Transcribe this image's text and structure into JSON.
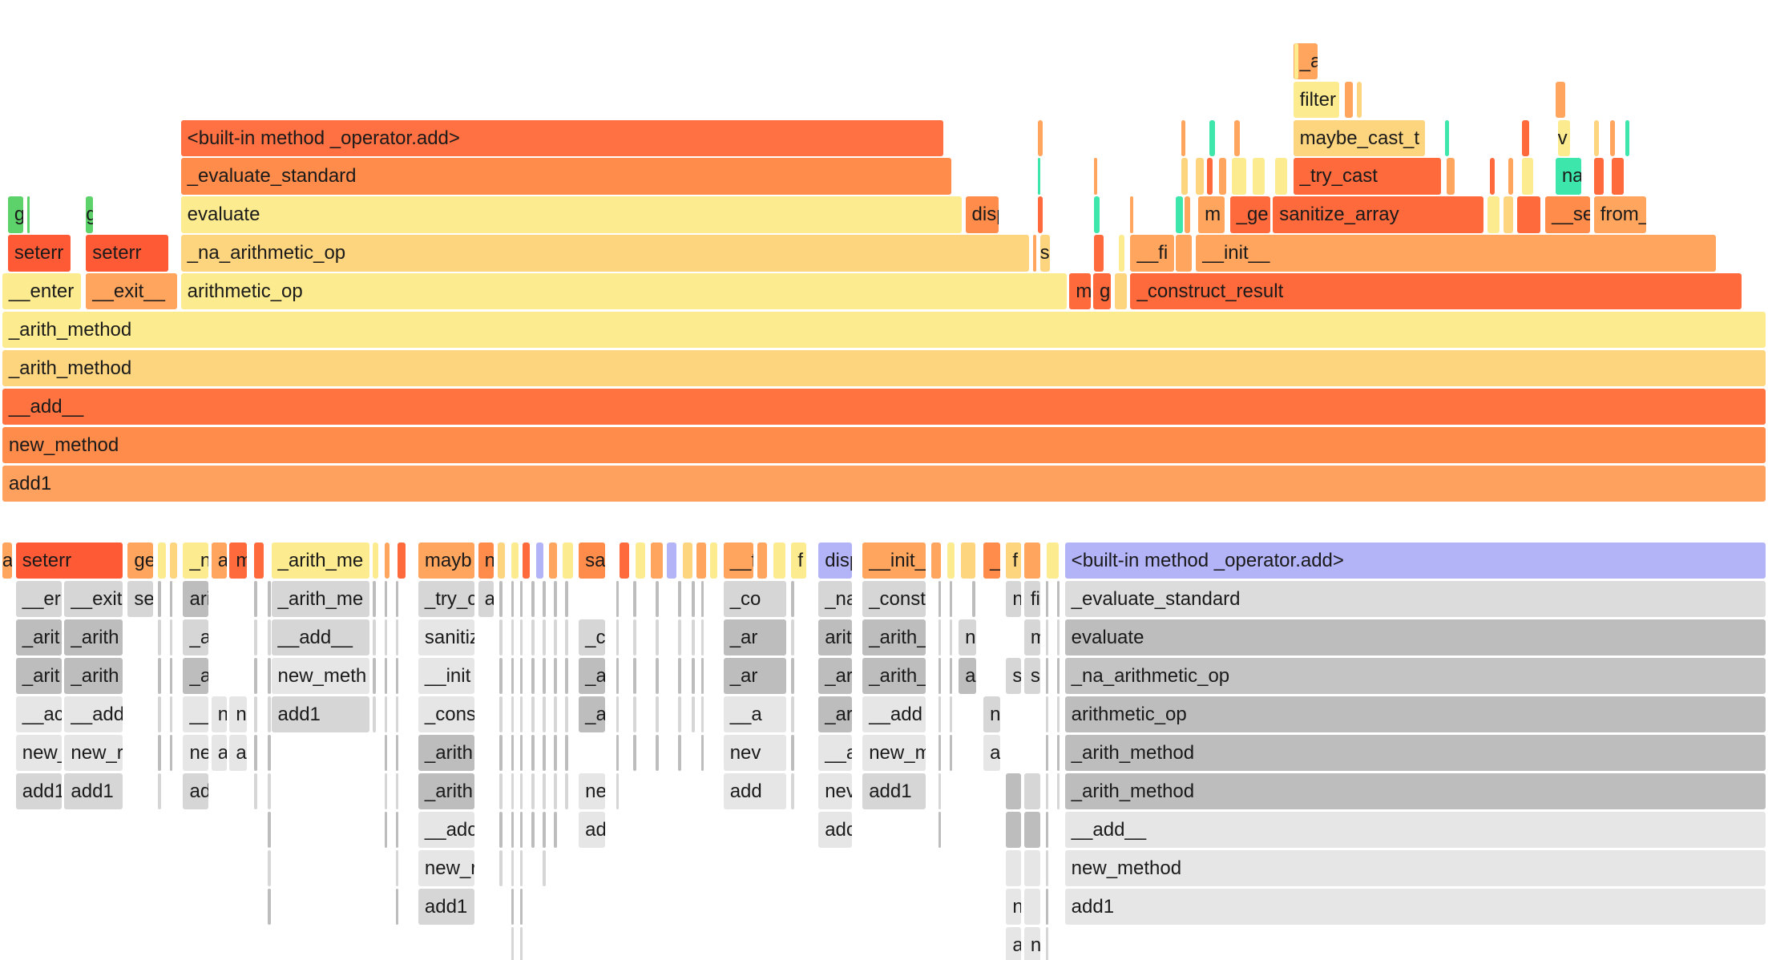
{
  "top": {
    "rows": [
      [
        "_a"
      ],
      [
        "filter"
      ],
      [
        "<built-in method _operator.add>",
        "maybe_cast_t",
        "v"
      ],
      [
        "_evaluate_standard",
        "_try_cast",
        "na"
      ],
      [
        "g",
        "g",
        "evaluate",
        "disp",
        "m",
        "_ge",
        "sanitize_array",
        "__se",
        "from_"
      ],
      [
        "seterr",
        "seterr",
        "_na_arithmetic_op",
        "s",
        "__fi",
        "__init__"
      ],
      [
        "__enter",
        "__exit__",
        "arithmetic_op",
        "m",
        "g",
        "_construct_result"
      ],
      [
        "_arith_method"
      ],
      [
        "_arith_method"
      ],
      [
        "__add__"
      ],
      [
        "new_method"
      ],
      [
        "add1"
      ]
    ]
  },
  "bottom": {
    "rows": [
      [
        "a",
        "seterr",
        "ge",
        "_n",
        "a",
        "m",
        "_arith_me",
        "mayb",
        "n",
        "sa",
        "__f",
        "f",
        "disp",
        "__init_",
        "_",
        "f",
        "<built-in method _operator.add>"
      ],
      [
        "__er",
        "__exit",
        "se",
        "ari",
        "_arith_me",
        "_try_c",
        "a",
        "_co",
        "_na",
        "_const",
        "n",
        "fi",
        "_evaluate_standard"
      ],
      [
        "_arit",
        "_arith",
        "_a",
        "__add__",
        "sanitiz",
        "_c",
        "_ar",
        "arit",
        "_arith_",
        "n",
        "m",
        "evaluate"
      ],
      [
        "_arit",
        "_arith",
        "_a",
        "new_meth",
        "__init",
        "_a",
        "_ar",
        "_ar",
        "_arith_",
        "a",
        "s",
        "s",
        "_na_arithmetic_op"
      ],
      [
        "__ac",
        "__add",
        "__",
        "n",
        "ne",
        "add1",
        "_cons",
        "_a",
        "__a",
        "_ar",
        "__add",
        "ne",
        "arithmetic_op"
      ],
      [
        "new_",
        "new_r",
        "ne",
        "a",
        "ac",
        "_arith",
        "nev",
        "__a",
        "new_m",
        "ac",
        "_arith_method"
      ],
      [
        "add1",
        "add1",
        "ad",
        "_arith",
        "ne",
        "add",
        "nev",
        "add1",
        "_arith_method"
      ],
      [
        "__adc",
        "ad",
        "adc",
        "__add__"
      ],
      [
        "new_r",
        "new_method"
      ],
      [
        "add1",
        "n",
        "add1"
      ],
      [
        "a",
        "n"
      ]
    ]
  }
}
